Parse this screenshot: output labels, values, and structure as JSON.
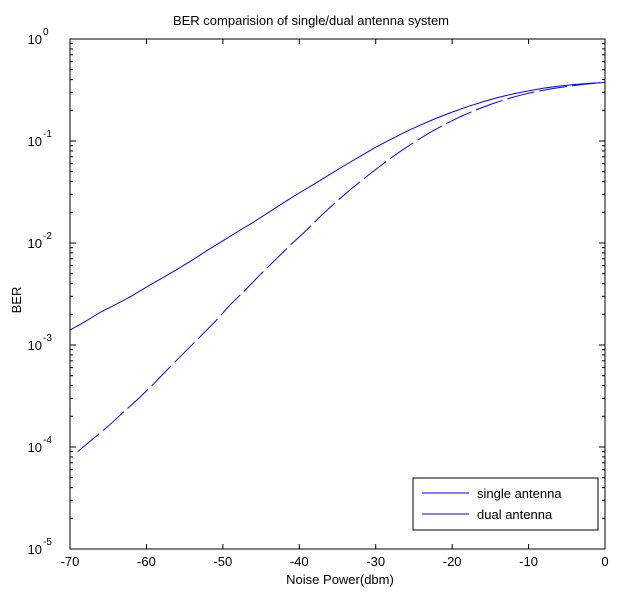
{
  "chart_data": {
    "type": "line",
    "title": "BER comparision of single/dual antenna system",
    "xlabel": "Noise Power(dbm)",
    "ylabel": "BER",
    "xlim": [
      -70,
      0
    ],
    "ylim": [
      1e-05,
      1
    ],
    "yscale": "log",
    "grid": false,
    "legend_position": "bottom-right",
    "x_ticks": [
      -70,
      -60,
      -50,
      -40,
      -30,
      -20,
      -10,
      0
    ],
    "x_tick_labels": [
      "-70",
      "-60",
      "-50",
      "-40",
      "-30",
      "-20",
      "-10",
      "0"
    ],
    "y_ticks": [
      {
        "value": 1e-05,
        "base": "10",
        "exp": "-5"
      },
      {
        "value": 0.0001,
        "base": "10",
        "exp": "-4"
      },
      {
        "value": 0.001,
        "base": "10",
        "exp": "-3"
      },
      {
        "value": 0.01,
        "base": "10",
        "exp": "-2"
      },
      {
        "value": 0.1,
        "base": "10",
        "exp": "-1"
      },
      {
        "value": 1,
        "base": "10",
        "exp": "0"
      }
    ],
    "series": [
      {
        "name": "single antenna",
        "color": "#0000ff",
        "line_style": "solid",
        "x": [
          -70,
          -68,
          -66,
          -64,
          -62,
          -60,
          -58,
          -56,
          -54,
          -52,
          -50,
          -48,
          -46,
          -44,
          -42,
          -40,
          -38,
          -36,
          -34,
          -32,
          -30,
          -28,
          -26,
          -24,
          -22,
          -20,
          -18,
          -16,
          -14,
          -12,
          -10,
          -8,
          -6,
          -4,
          -2,
          0
        ],
        "y": [
          0.0014,
          0.0017,
          0.0021,
          0.0025,
          0.003,
          0.0037,
          0.0045,
          0.0055,
          0.0068,
          0.0085,
          0.0105,
          0.013,
          0.016,
          0.02,
          0.025,
          0.031,
          0.038,
          0.047,
          0.058,
          0.071,
          0.087,
          0.104,
          0.124,
          0.145,
          0.168,
          0.192,
          0.217,
          0.242,
          0.267,
          0.29,
          0.31,
          0.33,
          0.345,
          0.358,
          0.367,
          0.375
        ]
      },
      {
        "name": "dual antenna",
        "color": "#0000ff",
        "line_style": "dashed",
        "x": [
          -69,
          -67,
          -65,
          -63,
          -61,
          -59,
          -57,
          -55,
          -53,
          -51,
          -49,
          -47,
          -45,
          -43,
          -41,
          -39,
          -37,
          -35,
          -33,
          -31,
          -29,
          -27,
          -25,
          -23,
          -21,
          -19,
          -17,
          -15,
          -13,
          -11,
          -9,
          -7,
          -5,
          -3,
          -1,
          0
        ],
        "y": [
          9e-05,
          0.00012,
          0.00016,
          0.00022,
          0.0003,
          0.00042,
          0.0006,
          0.00085,
          0.0012,
          0.0017,
          0.0025,
          0.0035,
          0.005,
          0.007,
          0.0098,
          0.0135,
          0.019,
          0.026,
          0.035,
          0.046,
          0.06,
          0.077,
          0.097,
          0.12,
          0.145,
          0.172,
          0.2,
          0.228,
          0.256,
          0.282,
          0.305,
          0.325,
          0.342,
          0.358,
          0.37,
          0.38
        ]
      }
    ]
  }
}
